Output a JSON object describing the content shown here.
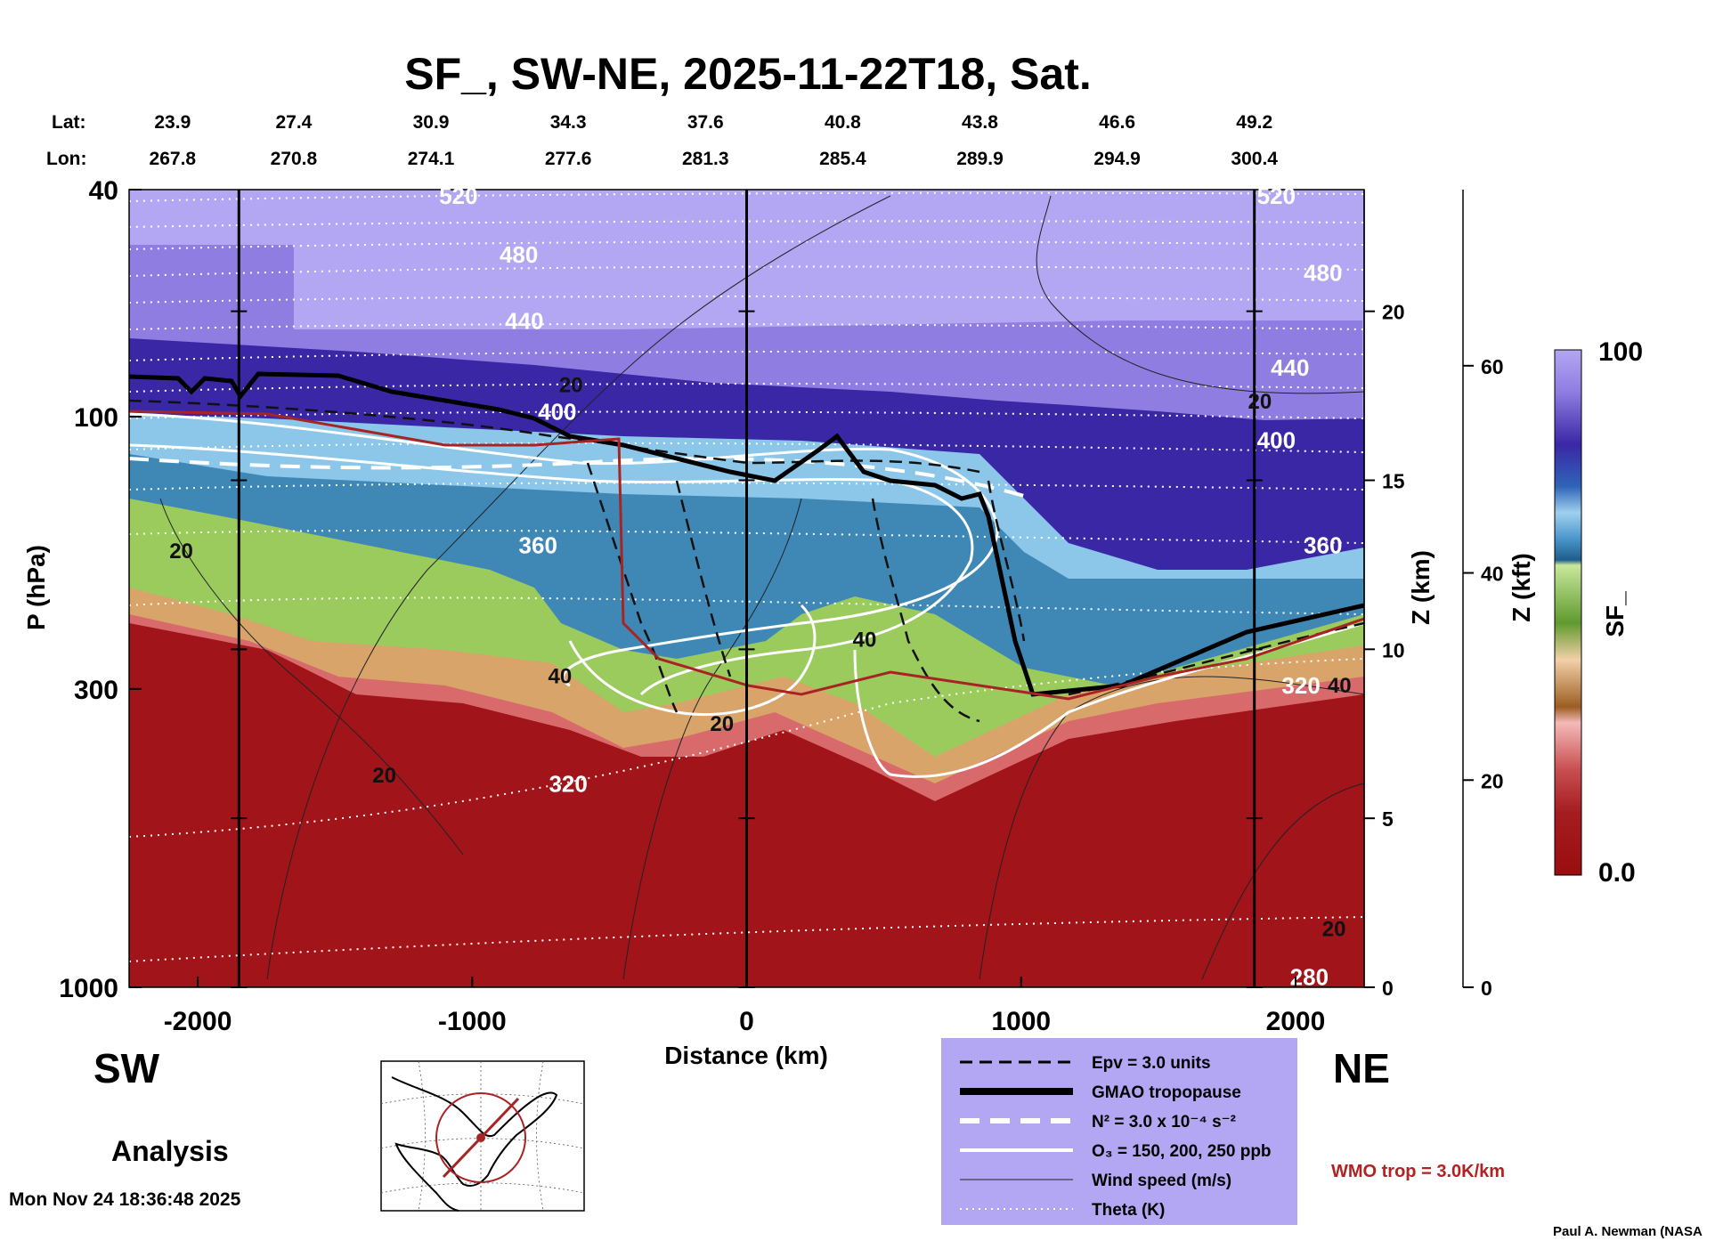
{
  "chart_data": {
    "type": "heatmap",
    "title": "SF_, SW-NE, 2025-11-22T18, Sat.",
    "xlabel": "Distance (km)",
    "ylabel": "P (hPa)",
    "xlim": [
      -2250,
      2250
    ],
    "ylim": [
      1000,
      40
    ],
    "x_ticks": [
      -2000,
      -1000,
      0,
      1000,
      2000
    ],
    "x_tick_labels": [
      "-2000",
      "-1000",
      "0",
      "1000",
      "2000"
    ],
    "p_ticks": [
      40,
      100,
      300,
      1000
    ],
    "p_tick_labels": [
      "40",
      "100",
      "300",
      "1000"
    ],
    "z_km_ticks": [
      0,
      5,
      10,
      15,
      20
    ],
    "z_km_tick_labels": [
      "0",
      "5",
      "10",
      "15",
      "20"
    ],
    "z_km_label": "Z (km)",
    "z_kft_ticks": [
      0,
      20,
      40,
      60
    ],
    "z_kft_tick_labels": [
      "0",
      "20",
      "40",
      "60"
    ],
    "z_kft_label": "Z (kft)",
    "lat_label": "Lat:",
    "lon_label": "Lon:",
    "lat": [
      "23.9",
      "27.4",
      "30.9",
      "34.3",
      "37.6",
      "40.8",
      "43.8",
      "46.6",
      "49.2"
    ],
    "lon": [
      "267.8",
      "270.8",
      "274.1",
      "277.6",
      "281.3",
      "285.4",
      "289.9",
      "294.9",
      "300.4"
    ],
    "lat_lon_x": [
      -2150,
      -1650,
      -1150,
      -650,
      -150,
      350,
      850,
      1350,
      1850
    ],
    "vertical_lines_x": [
      -1850,
      0,
      1850
    ],
    "theta_labels": [
      {
        "text": "520",
        "x": -1050,
        "p": 41
      },
      {
        "text": "480",
        "x": -830,
        "p": 52
      },
      {
        "text": "440",
        "x": -810,
        "p": 68
      },
      {
        "text": "400",
        "x": -690,
        "p": 98
      },
      {
        "text": "360",
        "x": -760,
        "p": 168
      },
      {
        "text": "320",
        "x": -650,
        "p": 440
      },
      {
        "text": "520",
        "x": 1930,
        "p": 41
      },
      {
        "text": "480",
        "x": 2100,
        "p": 56
      },
      {
        "text": "440",
        "x": 1980,
        "p": 82
      },
      {
        "text": "400",
        "x": 1930,
        "p": 110
      },
      {
        "text": "360",
        "x": 2100,
        "p": 168
      },
      {
        "text": "320",
        "x": 2020,
        "p": 296
      },
      {
        "text": "280",
        "x": 2050,
        "p": 960
      }
    ],
    "wind_labels": [
      {
        "text": "20",
        "x": -640,
        "p": 88
      },
      {
        "text": "20",
        "x": -2060,
        "p": 172
      },
      {
        "text": "40",
        "x": -680,
        "p": 285
      },
      {
        "text": "20",
        "x": -1320,
        "p": 425
      },
      {
        "text": "20",
        "x": -90,
        "p": 345
      },
      {
        "text": "40",
        "x": 430,
        "p": 246
      },
      {
        "text": "20",
        "x": 1870,
        "p": 94
      },
      {
        "text": "40",
        "x": 2160,
        "p": 296
      },
      {
        "text": "20",
        "x": 2140,
        "p": 790
      }
    ],
    "colorbar": {
      "label": "SF_",
      "max_label": "100",
      "min_label": "0.0",
      "colors_top_to_bottom": [
        "#b3a6f2",
        "#a896ee",
        "#9583e4",
        "#7a67d6",
        "#5c49c2",
        "#3d2aa8",
        "#2a1a96",
        "#2b3fa8",
        "#2f64b8",
        "#4a95cc",
        "#7cbfe2",
        "#a7d6ef",
        "#6fa7c8",
        "#3d86b2",
        "#2a6f9e",
        "#1f5d8a",
        "#c9e89b",
        "#a6d36f",
        "#82bd4a",
        "#5f9a2e",
        "#f2d0a8",
        "#e3b07a",
        "#c88844",
        "#9c5e22",
        "#f4b9b9",
        "#e48f90",
        "#cc6566",
        "#b33c3e",
        "#a51d20",
        "#9a0d0f"
      ]
    }
  },
  "labels": {
    "sw": "SW",
    "ne": "NE",
    "analysis": "Analysis",
    "timestamp": "Mon Nov 24 18:36:48 2025",
    "credit": "Paul A. Newman (NASA",
    "wmo": "WMO trop = 3.0K/km"
  },
  "legend": {
    "items": [
      {
        "label": "Epv = 3.0 units",
        "style": "dashed-black"
      },
      {
        "label": "GMAO tropopause",
        "style": "thick-black"
      },
      {
        "label": "N² = 3.0 x 10⁻⁴ s⁻²",
        "style": "dashed-white"
      },
      {
        "label": "O₃ = 150, 200, 250 ppb",
        "style": "solid-white"
      },
      {
        "label": "Wind speed (m/s)",
        "style": "thin-black"
      },
      {
        "label": "Theta (K)",
        "style": "dotted-white"
      }
    ],
    "bg_color": "#b3a6f2"
  }
}
